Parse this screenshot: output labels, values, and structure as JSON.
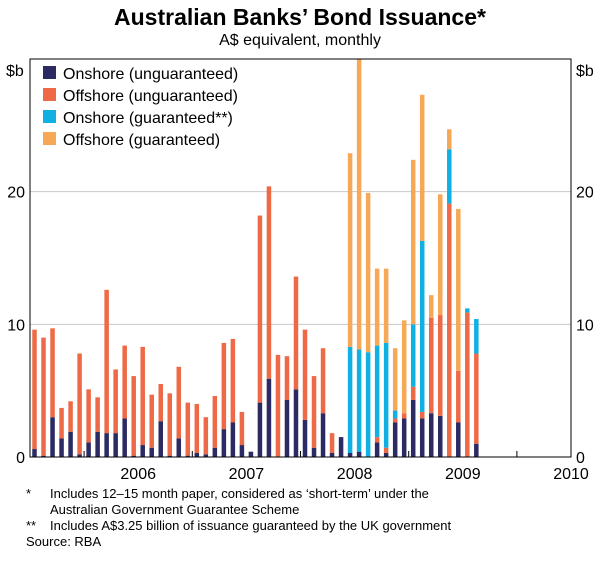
{
  "title": "Australian Banks’ Bond Issuance*",
  "subtitle": "A$ equivalent, monthly",
  "footnotes": {
    "note1_mark": "*",
    "note1_line1": "Includes 12–15 month paper, considered as ‘short-term’ under the",
    "note1_line2": "Australian Government Guarantee Scheme",
    "note2_mark": "**",
    "note2_text": "Includes A$3.25 billion of issuance guaranteed by the UK government",
    "source": "Source: RBA"
  },
  "chart_data": {
    "type": "bar",
    "stacked": true,
    "unit_left": "$b",
    "unit_right": "$b",
    "ylim": [
      0,
      30
    ],
    "yticks": [
      0,
      10,
      20
    ],
    "grid": true,
    "legend_position": "top-left",
    "year_labels": [
      "2006",
      "2007",
      "2008",
      "2009",
      "2010"
    ],
    "months": [
      "2005-07",
      "2005-08",
      "2005-09",
      "2005-10",
      "2005-11",
      "2005-12",
      "2006-01",
      "2006-02",
      "2006-03",
      "2006-04",
      "2006-05",
      "2006-06",
      "2006-07",
      "2006-08",
      "2006-09",
      "2006-10",
      "2006-11",
      "2006-12",
      "2007-01",
      "2007-02",
      "2007-03",
      "2007-04",
      "2007-05",
      "2007-06",
      "2007-07",
      "2007-08",
      "2007-09",
      "2007-10",
      "2007-11",
      "2007-12",
      "2008-01",
      "2008-02",
      "2008-03",
      "2008-04",
      "2008-05",
      "2008-06",
      "2008-07",
      "2008-08",
      "2008-09",
      "2008-10",
      "2008-11",
      "2008-12",
      "2009-01",
      "2009-02",
      "2009-03",
      "2009-04",
      "2009-05",
      "2009-06",
      "2009-07",
      "2009-08"
    ],
    "series": [
      {
        "name": "Onshore (unguaranteed)",
        "color": "#2b2a63",
        "values": [
          0.6,
          0.1,
          3.0,
          1.4,
          1.9,
          0.2,
          1.1,
          1.9,
          1.8,
          1.8,
          2.9,
          0.1,
          0.9,
          0.7,
          2.7,
          0.1,
          1.4,
          0.1,
          0.3,
          0.2,
          0.7,
          2.1,
          2.6,
          0.9,
          0.4,
          4.1,
          5.9,
          0.0,
          4.3,
          5.1,
          2.8,
          0.7,
          3.3,
          0.3,
          1.5,
          0.3,
          0.4,
          0.0,
          1.1,
          0.3,
          2.6,
          2.9,
          4.3,
          2.9,
          3.3,
          3.1,
          0.0,
          2.6,
          0.0,
          1.0
        ]
      },
      {
        "name": "Offshore (unguaranteed)",
        "color": "#ee6a46",
        "values": [
          9.0,
          8.9,
          6.7,
          2.3,
          2.3,
          7.6,
          4.0,
          2.6,
          10.8,
          4.8,
          5.5,
          6.0,
          7.4,
          4.0,
          2.8,
          4.7,
          5.4,
          4.0,
          3.7,
          2.8,
          3.9,
          6.5,
          6.3,
          2.5,
          0.0,
          14.1,
          14.5,
          7.7,
          3.3,
          8.5,
          6.8,
          5.4,
          4.9,
          1.5,
          0.0,
          0.0,
          0.0,
          0.0,
          0.4,
          0.4,
          0.3,
          0.4,
          1.0,
          0.5,
          7.2,
          7.6,
          19.1,
          3.9,
          10.9,
          6.8
        ]
      },
      {
        "name": "Onshore (guaranteed**)",
        "color": "#11b0e2",
        "values": [
          0,
          0,
          0,
          0,
          0,
          0,
          0,
          0,
          0,
          0,
          0,
          0,
          0,
          0,
          0,
          0,
          0,
          0,
          0,
          0,
          0,
          0,
          0,
          0,
          0,
          0,
          0,
          0,
          0,
          0,
          0,
          0,
          0,
          0,
          0,
          8.0,
          7.7,
          7.9,
          6.9,
          7.9,
          0.6,
          0.0,
          4.7,
          12.9,
          0.0,
          0.0,
          4.1,
          0.0,
          0.3,
          2.6
        ]
      },
      {
        "name": "Offshore (guaranteed)",
        "color": "#f7a857",
        "values": [
          0,
          0,
          0,
          0,
          0,
          0,
          0,
          0,
          0,
          0,
          0,
          0,
          0,
          0,
          0,
          0,
          0,
          0,
          0,
          0,
          0,
          0,
          0,
          0,
          0,
          0,
          0,
          0,
          0,
          0,
          0,
          0,
          0,
          0,
          0,
          14.6,
          21.9,
          12.0,
          5.8,
          5.6,
          4.7,
          7.0,
          12.4,
          11.0,
          1.7,
          9.1,
          1.5,
          12.2,
          0.0,
          0.0
        ]
      }
    ]
  }
}
